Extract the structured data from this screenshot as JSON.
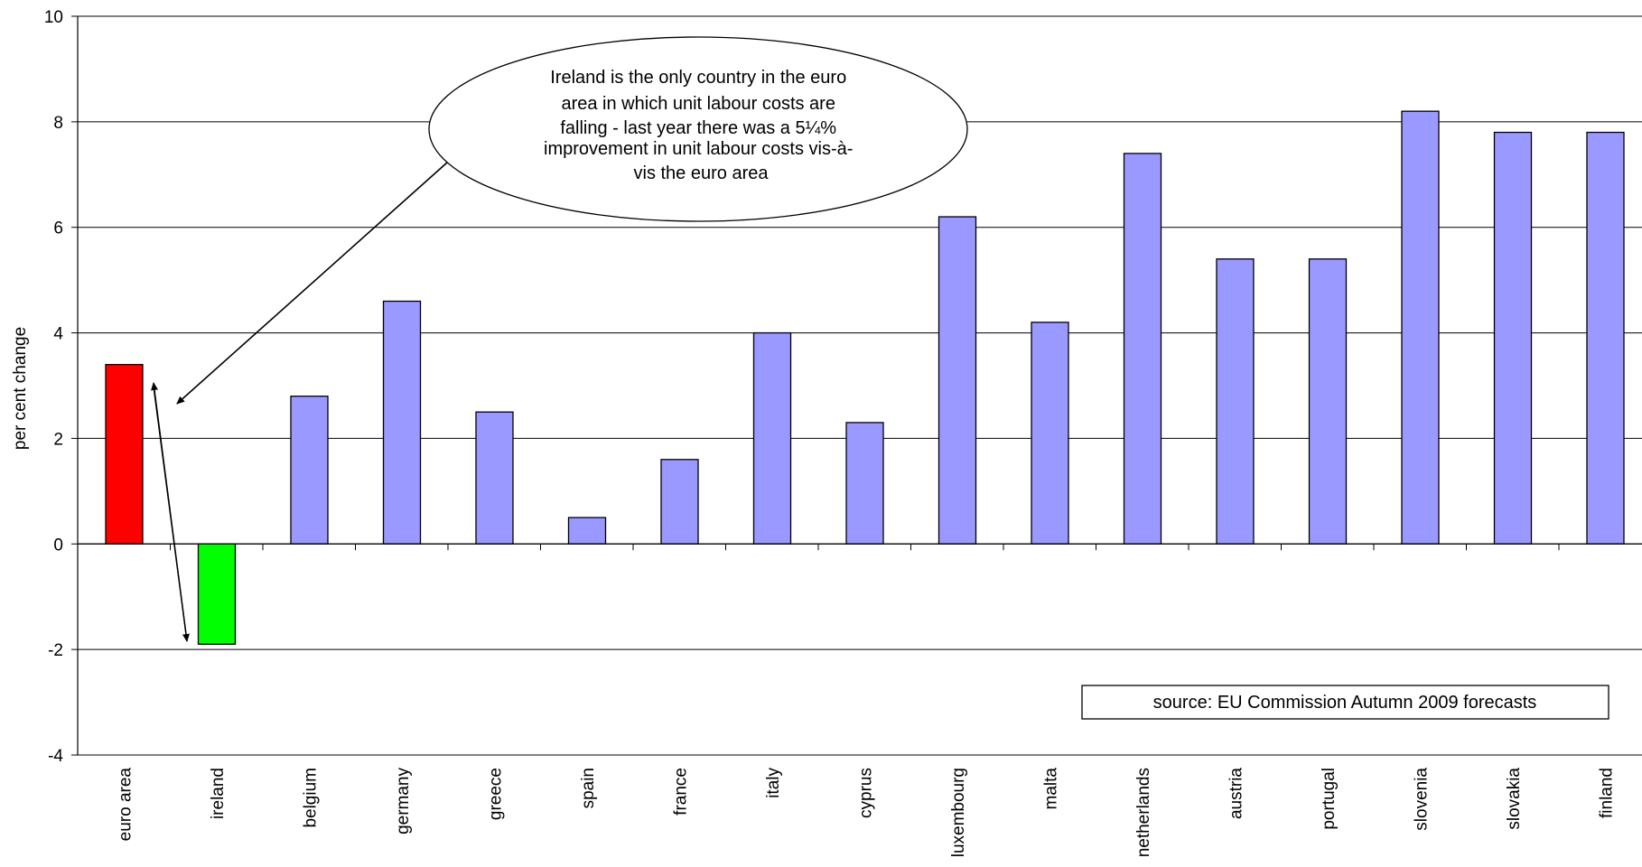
{
  "chart_data": {
    "type": "bar",
    "categories": [
      "euro area",
      "ireland",
      "belgium",
      "germany",
      "greece",
      "spain",
      "france",
      "italy",
      "cyprus",
      "luxembourg",
      "malta",
      "netherlands",
      "austria",
      "portugal",
      "slovenia",
      "slovakia",
      "finland"
    ],
    "values": [
      3.4,
      -1.9,
      2.8,
      4.6,
      2.5,
      0.5,
      1.6,
      4.0,
      2.3,
      6.2,
      4.2,
      7.4,
      5.4,
      5.4,
      8.2,
      7.8,
      7.8
    ],
    "bar_colors": [
      "#ff0000",
      "#00ff00",
      "#9999ff",
      "#9999ff",
      "#9999ff",
      "#9999ff",
      "#9999ff",
      "#9999ff",
      "#9999ff",
      "#9999ff",
      "#9999ff",
      "#9999ff",
      "#9999ff",
      "#9999ff",
      "#9999ff",
      "#9999ff",
      "#9999ff"
    ],
    "ylabel": "per cent change",
    "xlabel": "",
    "ylim": [
      -4,
      10
    ],
    "yticks": [
      "-4",
      "-2",
      "0",
      "2",
      "4",
      "6",
      "8",
      "10"
    ],
    "grid": true,
    "annotations": {
      "callout_lines": [
        "Ireland is the only country in the euro",
        "area in which unit labour costs are",
        "falling - last year there was a 5¼%",
        "improvement in unit labour costs vis-à-",
        "vis the euro area"
      ],
      "source": "source: EU Commission Autumn 2009 forecasts"
    }
  }
}
